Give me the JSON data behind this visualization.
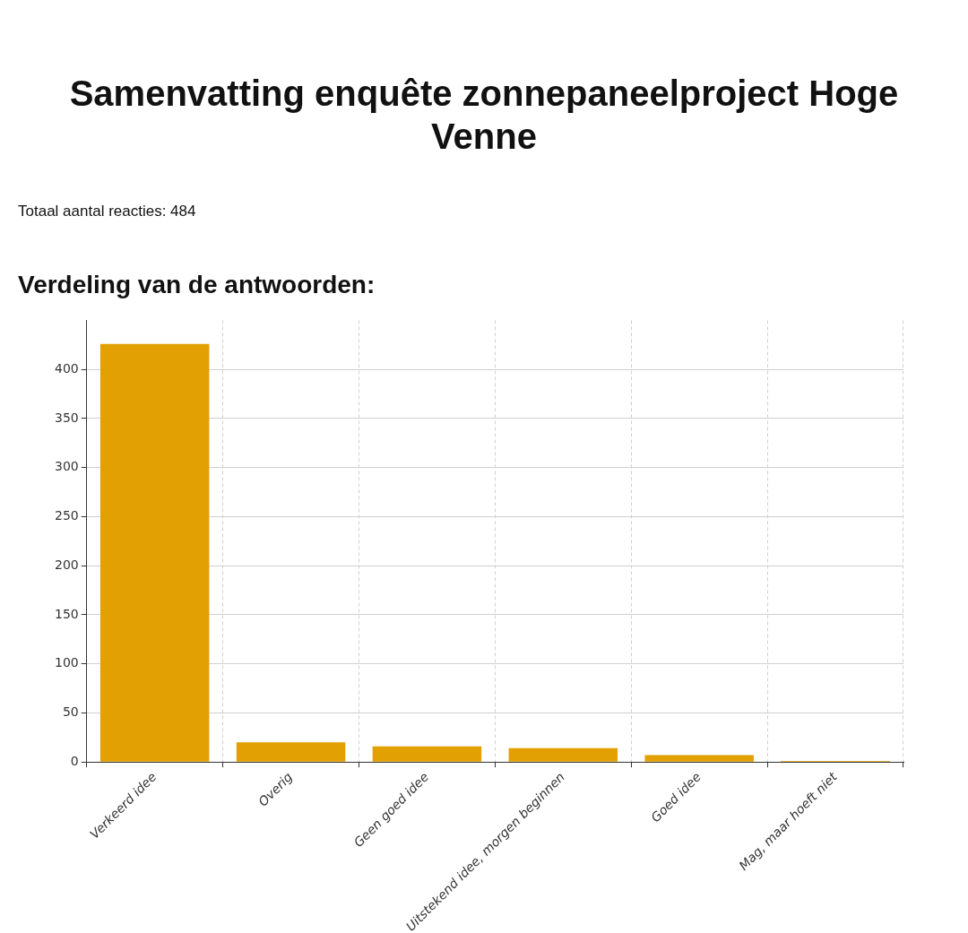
{
  "chart_data": {
    "type": "bar",
    "title": "Samenvatting enquête zonnepaneelproject Hoge Venne",
    "subtitle": "Verdeling van de antwoorden:",
    "annotations": [
      "Totaal aantal reacties: 484"
    ],
    "categories": [
      "Verkeerd idee",
      "Overig",
      "Geen goed idee",
      "Uitstekend idee, morgen beginnen",
      "Goed idee",
      "Mag, maar hoeft niet"
    ],
    "values": [
      426,
      20,
      16,
      14,
      7,
      1
    ],
    "color": "#e3a003",
    "ylim": [
      0,
      450
    ],
    "yticks": [
      0,
      50,
      100,
      150,
      200,
      250,
      300,
      350,
      400
    ],
    "grid": true
  }
}
